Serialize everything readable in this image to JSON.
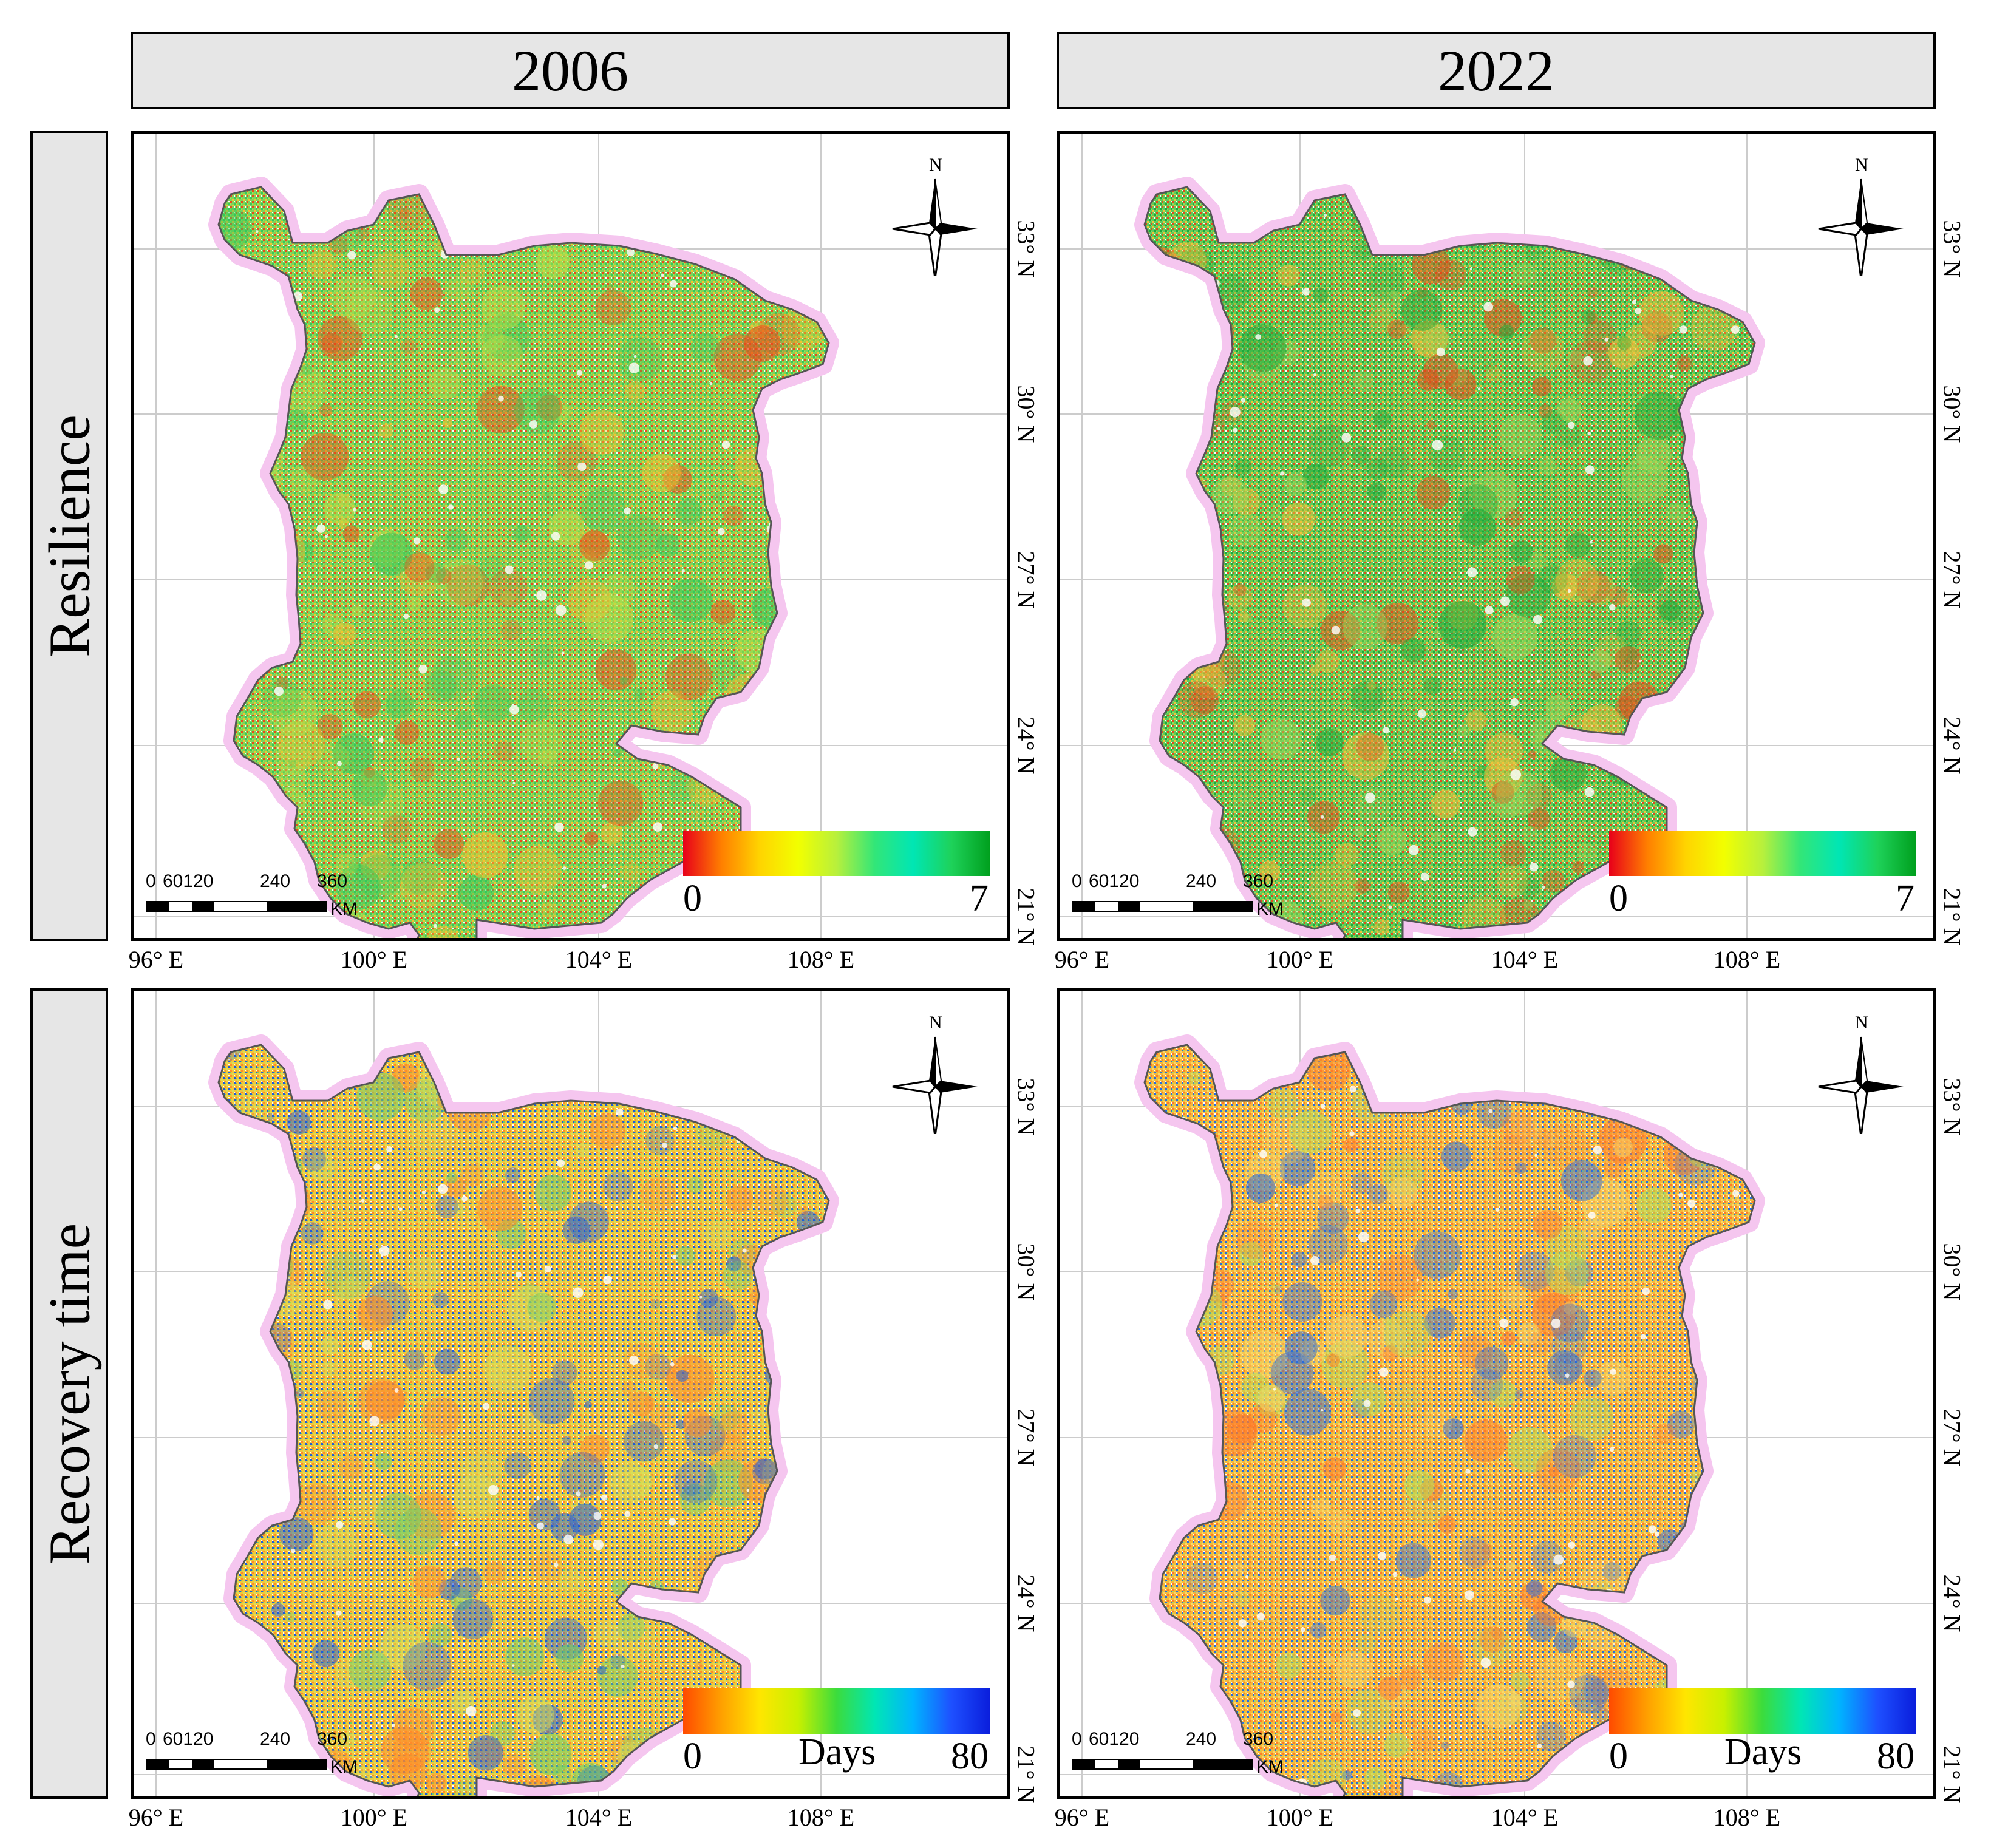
{
  "columns": [
    {
      "label": "2006"
    },
    {
      "label": "2022"
    }
  ],
  "rows": [
    {
      "label": "Resilience"
    },
    {
      "label": "Recovery time"
    }
  ],
  "lat_ticks": [
    "33° N",
    "30° N",
    "27° N",
    "24° N",
    "21° N"
  ],
  "lon_ticks": [
    "96° E",
    "100° E",
    "104° E",
    "108° E"
  ],
  "north_label": "N",
  "scalebar": {
    "labels": [
      "0",
      "60120",
      "240",
      "360"
    ],
    "unit": "KM"
  },
  "legends": {
    "resilience": {
      "min": "0",
      "max": "7",
      "unit": "",
      "colors": [
        "#e8001a",
        "#ff7f00",
        "#ffd400",
        "#f2ff00",
        "#b8f03c",
        "#32e678",
        "#00e6b4",
        "#1ed25a",
        "#00a01e"
      ]
    },
    "recovery": {
      "min": "0",
      "max": "80",
      "unit": "Days",
      "colors": [
        "#ff4b00",
        "#ffa000",
        "#ffe600",
        "#c8f000",
        "#3cdc3c",
        "#00e6b4",
        "#00b4ff",
        "#1e50ff",
        "#0a1edc"
      ]
    }
  },
  "maps": [
    {
      "name": "resilience-2006",
      "base": "#7fd35a",
      "tint": [
        "#e94a1a",
        "#f5c230",
        "#b6e04a",
        "#36c85a"
      ]
    },
    {
      "name": "resilience-2022",
      "base": "#5fcb5a",
      "tint": [
        "#e24a1a",
        "#f2c23a",
        "#9ad85a",
        "#1ea83a"
      ]
    },
    {
      "name": "recovery-2006",
      "base": "#f2c63a",
      "tint": [
        "#ff8a2a",
        "#d6e05a",
        "#6cd06a",
        "#1e5adc"
      ]
    },
    {
      "name": "recovery-2022",
      "base": "#f5b83a",
      "tint": [
        "#ff7a2a",
        "#f8d86a",
        "#b0e05a",
        "#2a6adc"
      ]
    }
  ]
}
